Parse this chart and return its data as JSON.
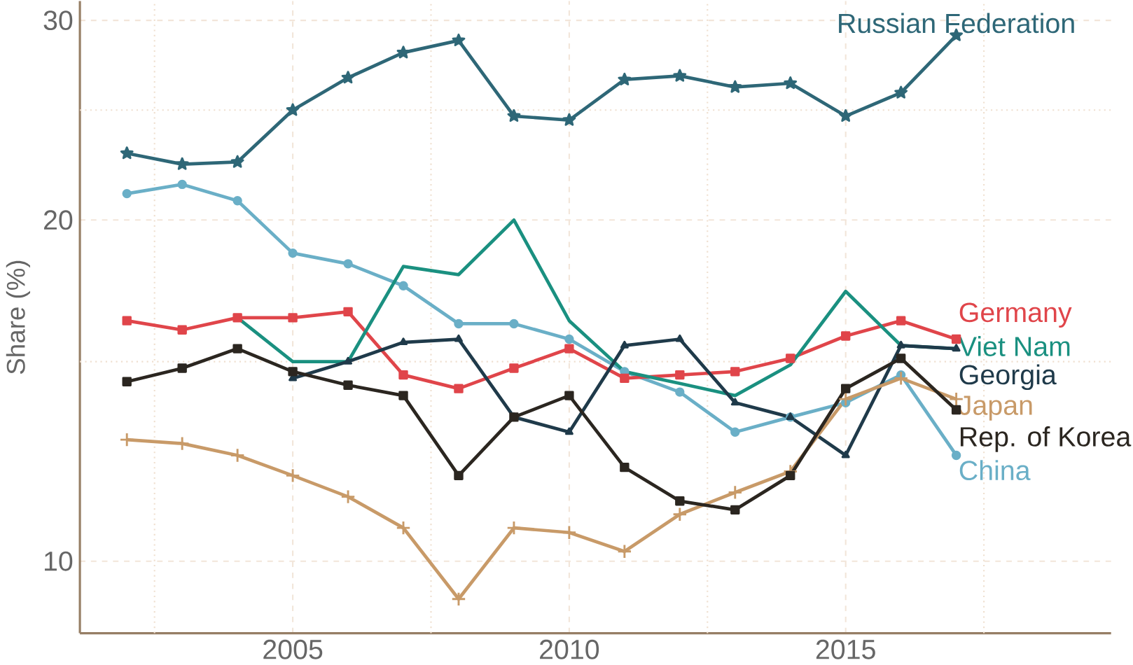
{
  "chart_data": {
    "type": "line",
    "ylabel": "Share (%)",
    "log": "y",
    "grid": true,
    "legend": false,
    "x": [
      2002,
      2003,
      2004,
      2005,
      2006,
      2007,
      2008,
      2009,
      2010,
      2011,
      2012,
      2013,
      2014,
      2015,
      2016,
      2017
    ],
    "xlim": [
      2001.15,
      2019.8
    ],
    "ylim": [
      8.64,
      31.2
    ],
    "xticks": [
      {
        "value": 2002.5,
        "label": null
      },
      2005,
      {
        "value": 2007.5,
        "label": null
      },
      2010,
      {
        "value": 2012.5,
        "label": null
      },
      2015,
      {
        "value": 2017.5,
        "label": null
      }
    ],
    "yticks": [
      10,
      {
        "value": 15,
        "label": null
      },
      20,
      {
        "value": 25,
        "label": null
      },
      30
    ],
    "series": [
      {
        "name": "Russian Federation",
        "color": "#2e6777",
        "marker": "star",
        "values": [
          22.9,
          22.4,
          22.5,
          25.0,
          26.7,
          28.1,
          28.8,
          24.7,
          24.5,
          26.6,
          26.8,
          26.2,
          26.4,
          24.7,
          25.9,
          29.1
        ]
      },
      {
        "name": "China",
        "color": "#6aafc7",
        "marker": "circle",
        "values": [
          21.1,
          21.5,
          20.8,
          18.7,
          18.3,
          17.5,
          16.2,
          16.2,
          15.7,
          14.7,
          14.1,
          13.0,
          13.4,
          13.8,
          14.6,
          12.4
        ]
      },
      {
        "name": "Germany",
        "color": "#e0454a",
        "marker": "square",
        "values": [
          16.3,
          16.0,
          16.4,
          16.4,
          16.6,
          14.6,
          14.2,
          14.8,
          15.4,
          14.5,
          14.6,
          14.7,
          15.1,
          15.8,
          16.3,
          15.7
        ]
      },
      {
        "name": "Viet Nam",
        "color": "#1a9080",
        "marker": "none",
        "values": [
          null,
          null,
          16.4,
          15.0,
          15.0,
          18.2,
          17.9,
          20.0,
          16.3,
          14.7,
          14.35,
          14.0,
          14.9,
          17.3,
          15.5,
          15.4
        ]
      },
      {
        "name": "Georgia",
        "color": "#1f3a4a",
        "marker": "triangle",
        "values": [
          null,
          null,
          null,
          14.5,
          15.0,
          15.6,
          15.7,
          13.4,
          13.0,
          15.5,
          15.7,
          13.8,
          13.4,
          12.4,
          15.5,
          15.4
        ]
      },
      {
        "name": "Japan",
        "color": "#c89a68",
        "marker": "cross",
        "values": [
          12.8,
          12.7,
          12.4,
          11.9,
          11.4,
          10.7,
          9.26,
          10.7,
          10.6,
          10.2,
          11.0,
          11.5,
          12.0,
          13.9,
          14.5,
          13.9
        ]
      },
      {
        "name": "Rep. of Korea",
        "color": "#2b2620",
        "marker": "square",
        "values": [
          14.4,
          14.8,
          15.4,
          14.7,
          14.3,
          14.0,
          11.9,
          13.4,
          14.0,
          12.1,
          11.3,
          11.1,
          11.9,
          14.2,
          15.1,
          13.6
        ]
      }
    ]
  }
}
